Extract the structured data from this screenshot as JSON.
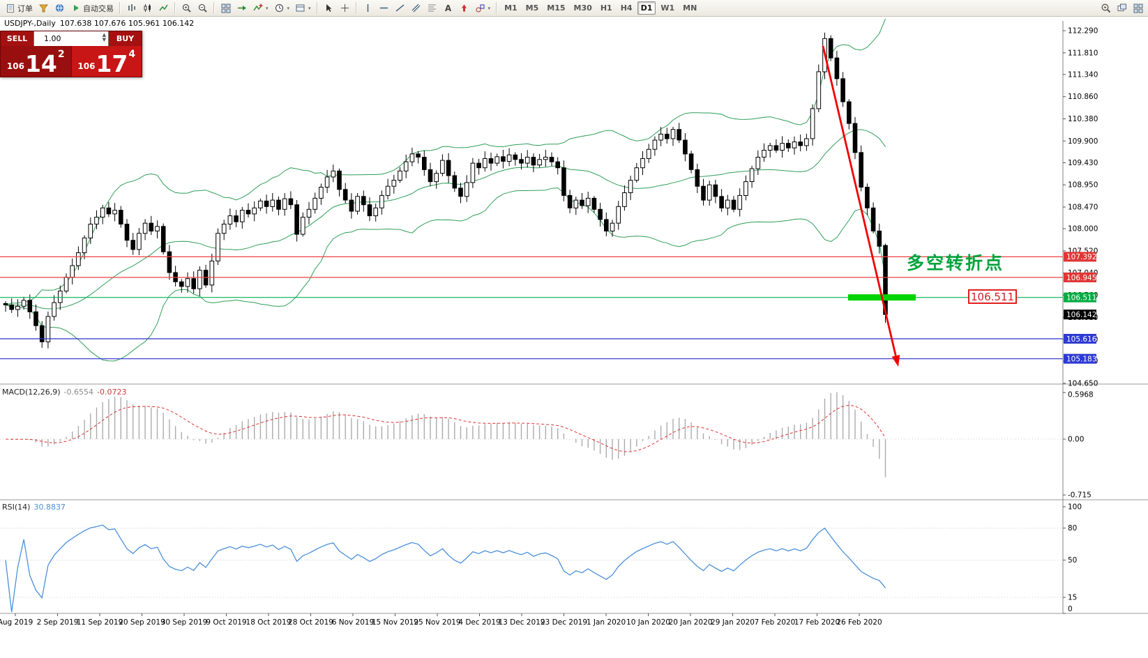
{
  "symbol_header": {
    "symbol": "USDJPY-,Daily",
    "ohlc": "107.638 107.676 105.961 106.142"
  },
  "one_click": {
    "sell_label": "SELL",
    "buy_label": "BUY",
    "volume": "1.00",
    "sell_price_prefix": "106",
    "sell_price_big": "14",
    "sell_price_sup": "2",
    "buy_price_prefix": "106",
    "buy_price_big": "17",
    "buy_price_sup": "4"
  },
  "toolbar": {
    "groups": [
      {
        "name": "trade",
        "items": [
          {
            "name": "new-order-button",
            "icon": "doc",
            "label": "订单"
          },
          {
            "name": "mql-market-button",
            "icon": "funnel"
          },
          {
            "name": "community-button",
            "icon": "globe"
          },
          {
            "name": "autotrade-button",
            "icon": "play",
            "label": "自动交易"
          }
        ]
      },
      {
        "name": "chart-types",
        "items": [
          {
            "name": "bar-chart-button",
            "icon": "bars"
          },
          {
            "name": "candlestick-chart-button",
            "icon": "candles"
          },
          {
            "name": "line-chart-button",
            "icon": "linechart"
          }
        ]
      },
      {
        "name": "zoom",
        "items": [
          {
            "name": "zoom-in-button",
            "icon": "zoomin"
          },
          {
            "name": "zoom-out-button",
            "icon": "zoomout"
          }
        ]
      },
      {
        "name": "chart-tools",
        "items": [
          {
            "name": "tile-windows-button",
            "icon": "grid"
          },
          {
            "name": "auto-scroll-button",
            "icon": "shift"
          },
          {
            "name": "indicators-button",
            "icon": "indicator",
            "caret": true
          },
          {
            "name": "periods-button",
            "icon": "clock",
            "caret": true
          },
          {
            "name": "templates-button",
            "icon": "template",
            "caret": true
          }
        ]
      },
      {
        "name": "pointer",
        "items": [
          {
            "name": "cursor-button",
            "icon": "cursor"
          },
          {
            "name": "crosshair-button",
            "icon": "crosshair"
          }
        ]
      },
      {
        "name": "objects",
        "items": [
          {
            "name": "vertical-line-button",
            "icon": "vline"
          },
          {
            "name": "horizontal-line-button",
            "icon": "hline"
          },
          {
            "name": "trendline-button",
            "icon": "trend"
          },
          {
            "name": "channel-button",
            "icon": "channel"
          },
          {
            "name": "fibonacci-button",
            "icon": "fib"
          },
          {
            "name": "text-button",
            "icon": "textA"
          },
          {
            "name": "arrows-button",
            "icon": "arrowsym"
          },
          {
            "name": "shapes-button",
            "icon": "shapes",
            "caret": true
          }
        ]
      },
      {
        "name": "timeframes",
        "items": [
          {
            "name": "timeframe-m1",
            "label": "M1"
          },
          {
            "name": "timeframe-m5",
            "label": "M5"
          },
          {
            "name": "timeframe-m15",
            "label": "M15"
          },
          {
            "name": "timeframe-m30",
            "label": "M30"
          },
          {
            "name": "timeframe-h1",
            "label": "H1"
          },
          {
            "name": "timeframe-h4",
            "label": "H4"
          },
          {
            "name": "timeframe-d1",
            "label": "D1",
            "active": true
          },
          {
            "name": "timeframe-w1",
            "label": "W1"
          },
          {
            "name": "timeframe-mn",
            "label": "MN"
          }
        ]
      },
      {
        "name": "right",
        "align": "right",
        "items": [
          {
            "name": "search-button",
            "icon": "search"
          },
          {
            "name": "new-chart-button",
            "icon": "windows"
          },
          {
            "name": "layout-button",
            "icon": "grid"
          }
        ]
      }
    ]
  },
  "chart_data": {
    "type": "candlestick",
    "symbol": "USDJPY-,Daily",
    "price_axis": [
      "112.290",
      "111.810",
      "111.340",
      "110.860",
      "110.380",
      "109.900",
      "109.430",
      "108.950",
      "108.470",
      "108.000",
      "107.520",
      "107.040",
      "106.560",
      "106.080",
      "105.600",
      "105.130",
      "104.650"
    ],
    "date_labels": [
      "Aug 2019",
      "2 Sep 2019",
      "11 Sep 2019",
      "20 Sep 2019",
      "30 Sep 2019",
      "9 Oct 2019",
      "18 Oct 2019",
      "28 Oct 2019",
      "6 Nov 2019",
      "15 Nov 2019",
      "25 Nov 2019",
      "4 Dec 2019",
      "13 Dec 2019",
      "23 Dec 2019",
      "1 Jan 2020",
      "10 Jan 2020",
      "20 Jan 2020",
      "29 Jan 2020",
      "7 Feb 2020",
      "17 Feb 2020",
      "26 Feb 2020"
    ],
    "closes": [
      106.35,
      106.25,
      106.32,
      106.45,
      106.2,
      105.9,
      105.55,
      106.1,
      106.4,
      106.65,
      106.95,
      107.2,
      107.48,
      107.8,
      108.1,
      108.25,
      108.45,
      108.32,
      108.4,
      108.1,
      107.75,
      107.55,
      107.9,
      108.12,
      107.95,
      108.05,
      107.5,
      107.05,
      106.85,
      106.75,
      106.92,
      106.7,
      107.1,
      106.78,
      107.3,
      107.9,
      108.1,
      108.28,
      108.15,
      108.4,
      108.32,
      108.45,
      108.6,
      108.48,
      108.62,
      108.42,
      108.65,
      108.52,
      107.88,
      108.25,
      108.42,
      108.66,
      108.9,
      109.12,
      109.25,
      108.85,
      108.62,
      108.38,
      108.7,
      108.52,
      108.28,
      108.45,
      108.72,
      108.92,
      109.05,
      109.25,
      109.45,
      109.62,
      109.55,
      109.28,
      109.02,
      109.2,
      109.48,
      109.15,
      108.88,
      108.7,
      109.0,
      109.42,
      109.32,
      109.52,
      109.42,
      109.56,
      109.46,
      109.6,
      109.5,
      109.42,
      109.55,
      109.38,
      109.5,
      109.55,
      109.45,
      109.32,
      108.72,
      108.45,
      108.62,
      108.5,
      108.66,
      108.42,
      108.2,
      107.95,
      108.12,
      108.48,
      108.78,
      109.05,
      109.32,
      109.52,
      109.72,
      109.92,
      110.05,
      109.95,
      110.15,
      109.92,
      109.62,
      109.28,
      108.92,
      108.62,
      108.95,
      108.7,
      108.45,
      108.62,
      108.42,
      108.72,
      109.02,
      109.3,
      109.55,
      109.7,
      109.8,
      109.7,
      109.85,
      109.75,
      109.88,
      109.8,
      109.95,
      110.6,
      111.4,
      112.12,
      111.7,
      111.25,
      110.75,
      110.28,
      109.65,
      108.9,
      108.45,
      107.95,
      107.62,
      106.142
    ],
    "last_candle": {
      "o": 107.638,
      "h": 107.676,
      "l": 105.961,
      "c": 106.142
    },
    "bollinger": {
      "period": 20,
      "deviation": 2,
      "color": "#2e9e57"
    },
    "hlines": [
      {
        "price": 107.392,
        "color": "#ef4040",
        "label": "107.392",
        "label_bg": "#e03636"
      },
      {
        "price": 106.945,
        "color": "#ef4040",
        "label": "106.945",
        "label_bg": "#e03636"
      },
      {
        "price": 106.511,
        "color": "#00b050",
        "label": "106.511",
        "label_bg": "#00ad44"
      },
      {
        "price": 105.616,
        "color": "#2d2dd0",
        "label": "105.616",
        "label_bg": "#2d3ad4"
      },
      {
        "price": 105.183,
        "color": "#2d2dd0",
        "label": "105.183",
        "label_bg": "#2d3ad4"
      }
    ],
    "current_price": {
      "value": 106.142,
      "label": "106.142",
      "label_bg": "#000000"
    },
    "macd": {
      "label": "MACD(12,26,9)",
      "value_main": "-0.6554",
      "value_signal": "-0.0723",
      "scale": [
        "0.5968",
        "0.00",
        "-0.715"
      ],
      "histogram_color": "#ababab",
      "signal_color": "#e03030"
    },
    "rsi": {
      "label": "RSI(14)",
      "value": "30.8837",
      "scale": [
        "100",
        "80",
        "50",
        "15",
        "0"
      ],
      "levels": [
        80,
        50,
        15
      ],
      "color": "#4a90d9"
    },
    "annotations": {
      "turning_point_text": "多空转折点",
      "turning_point_color": "#00a33c",
      "level_label": "106.511",
      "green_segment_price": 106.511,
      "green_segment_color": "#00d300",
      "arrow_color": "#f00000"
    }
  }
}
